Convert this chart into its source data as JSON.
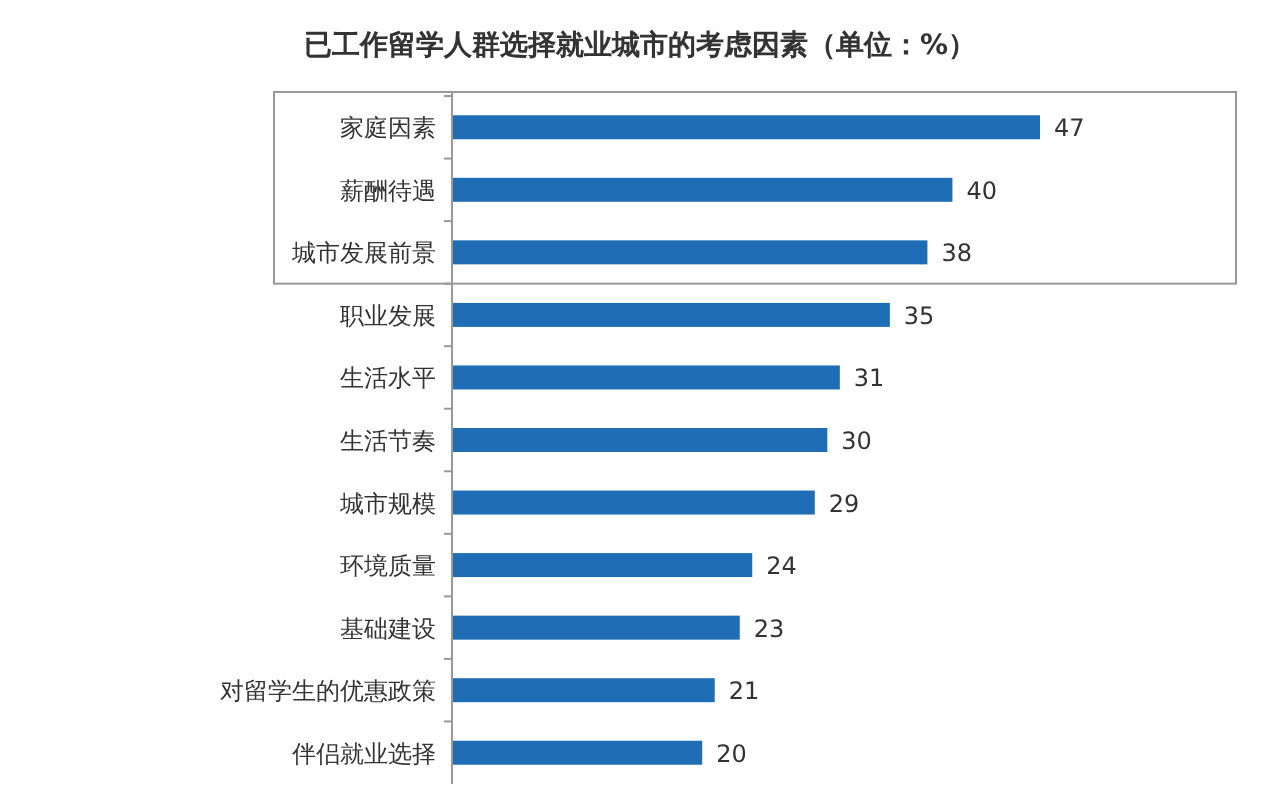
{
  "chart_data": {
    "type": "bar",
    "orientation": "horizontal",
    "title": "已工作留学人群选择就业城市的考虑因素（单位：%）",
    "categories": [
      "家庭因素",
      "薪酬待遇",
      "城市发展前景",
      "职业发展",
      "生活水平",
      "生活节奏",
      "城市规模",
      "环境质量",
      "基础建设",
      "对留学生的优惠政策",
      "伴侣就业选择"
    ],
    "values": [
      47,
      40,
      38,
      35,
      31,
      30,
      29,
      24,
      23,
      21,
      20
    ],
    "color": "#1f6db5",
    "data_labels": true
  }
}
